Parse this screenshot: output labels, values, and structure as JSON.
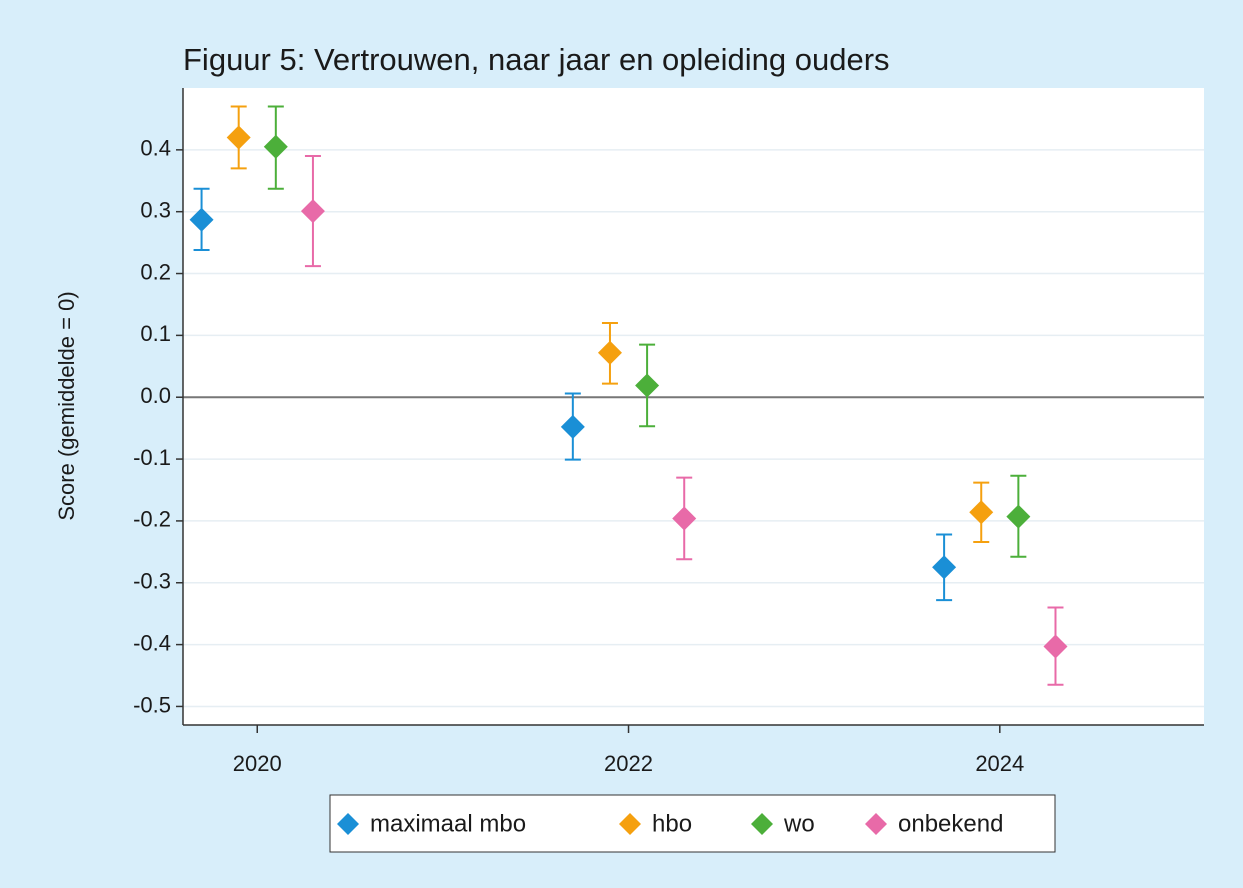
{
  "chart_data": {
    "type": "errorbar",
    "title": "Figuur 5: Vertrouwen, naar jaar en opleiding ouders",
    "y_label": "Score (gemiddelde = 0)",
    "xlim": [
      2019.6,
      2025.1
    ],
    "xticks": [
      2020,
      2022,
      2024
    ],
    "ylim": [
      -0.53,
      0.5
    ],
    "yticks": [
      0.4,
      0.3,
      0.2,
      0.1,
      {
        "value": 0,
        "label": "0.0"
      },
      -0.1,
      -0.2,
      -0.3,
      -0.4,
      -0.5
    ],
    "reference_line": 0,
    "grid": true,
    "legend": "bottom",
    "series": [
      {
        "name": "maximaal mbo",
        "color": "#1a8fd6",
        "x": [
          2019.7,
          2021.7,
          2023.7
        ],
        "values": [
          0.287,
          -0.048,
          -0.275
        ],
        "lower": [
          0.238,
          -0.101,
          -0.328
        ],
        "upper": [
          0.337,
          0.006,
          -0.222
        ]
      },
      {
        "name": "hbo",
        "color": "#f5a00f",
        "x": [
          2019.9,
          2021.9,
          2023.9
        ],
        "values": [
          0.42,
          0.072,
          -0.186
        ],
        "lower": [
          0.37,
          0.022,
          -0.234
        ],
        "upper": [
          0.47,
          0.12,
          -0.138
        ]
      },
      {
        "name": "wo",
        "color": "#4caf3a",
        "x": [
          2020.1,
          2022.1,
          2024.1
        ],
        "values": [
          0.405,
          0.019,
          -0.193
        ],
        "lower": [
          0.337,
          -0.047,
          -0.258
        ],
        "upper": [
          0.47,
          0.085,
          -0.127
        ]
      },
      {
        "name": "onbekend",
        "color": "#e86aa8",
        "x": [
          2020.3,
          2022.3,
          2024.3
        ],
        "values": [
          0.301,
          -0.196,
          -0.403
        ],
        "lower": [
          0.212,
          -0.262,
          -0.465
        ],
        "upper": [
          0.39,
          -0.13,
          -0.34
        ]
      }
    ]
  }
}
